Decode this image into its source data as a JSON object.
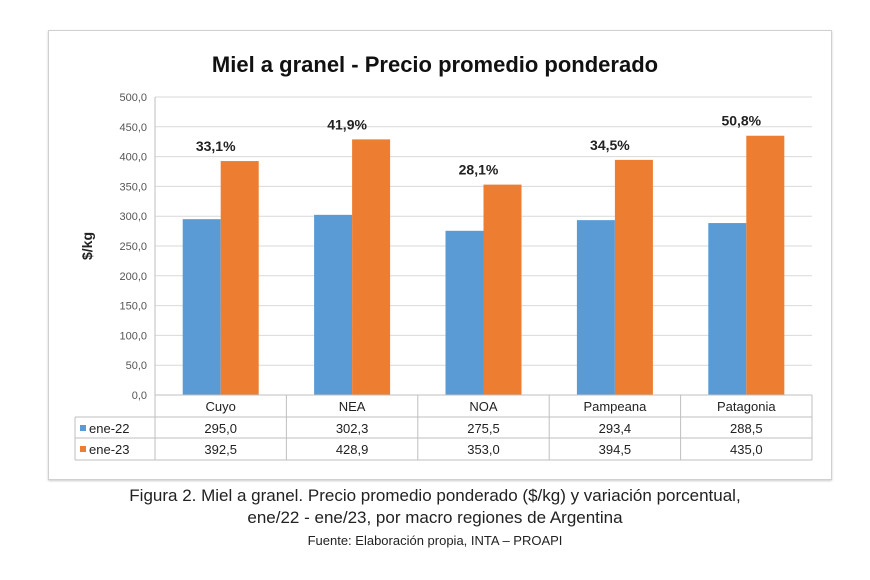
{
  "chart_data": {
    "type": "bar",
    "title": "Miel a granel - Precio promedio ponderado",
    "ylabel": "$/kg",
    "xlabel": "",
    "ylim": [
      0,
      500
    ],
    "yticks": [
      "0,0",
      "50,0",
      "100,0",
      "150,0",
      "200,0",
      "250,0",
      "300,0",
      "350,0",
      "400,0",
      "450,0",
      "500,0"
    ],
    "grid": true,
    "legend": "table-bottom",
    "categories": [
      "Cuyo",
      "NEA",
      "NOA",
      "Pampeana",
      "Patagonia"
    ],
    "series": [
      {
        "name": "ene-22",
        "color": "#5b9bd5",
        "values": [
          295.0,
          302.3,
          275.5,
          293.4,
          288.5
        ],
        "labels": [
          "295,0",
          "302,3",
          "275,5",
          "293,4",
          "288,5"
        ]
      },
      {
        "name": "ene-23",
        "color": "#ed7d31",
        "values": [
          392.5,
          428.9,
          353.0,
          394.5,
          435.0
        ],
        "labels": [
          "392,5",
          "428,9",
          "353,0",
          "394,5",
          "435,0"
        ]
      }
    ],
    "annotations": [
      "33,1%",
      "41,9%",
      "28,1%",
      "34,5%",
      "50,8%"
    ]
  },
  "caption": {
    "line1": "Figura 2. Miel a granel. Precio promedio ponderado ($/kg) y variación porcentual,",
    "line2": "ene/22 - ene/23, por macro regiones de Argentina",
    "source": "Fuente: Elaboración propia, INTA – PROAPI"
  }
}
